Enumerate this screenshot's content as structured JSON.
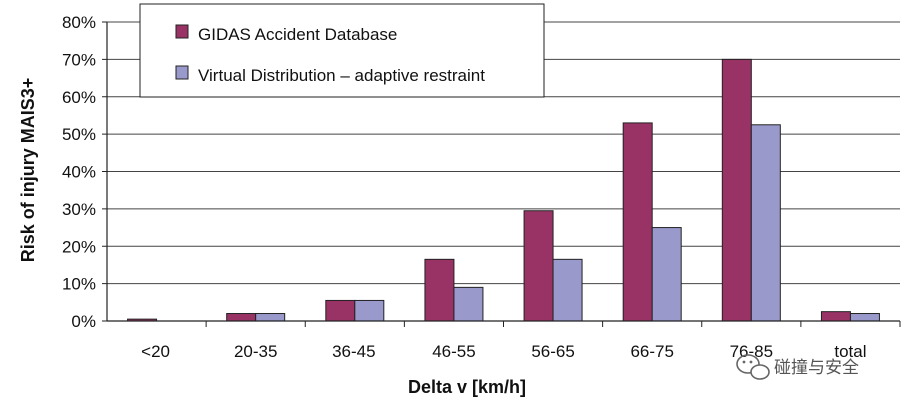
{
  "chart_data": {
    "type": "bar",
    "categories": [
      "<20",
      "20-35",
      "36-45",
      "46-55",
      "56-65",
      "66-75",
      "76-85",
      "total"
    ],
    "series": [
      {
        "name": "GIDAS Accident Database",
        "color": "#993366",
        "values": [
          0.5,
          2,
          5.5,
          16.5,
          29.5,
          53,
          70,
          2.5
        ]
      },
      {
        "name": "Virtual Distribution – adaptive restraint",
        "color": "#9999cc",
        "values": [
          0,
          2,
          5.5,
          9,
          16.5,
          25,
          52.5,
          2
        ]
      }
    ],
    "xlabel": "Delta v [km/h]",
    "ylabel": "Risk of injury MAIS3+",
    "ylim": [
      0,
      80
    ],
    "yticks": [
      "0%",
      "10%",
      "20%",
      "30%",
      "40%",
      "50%",
      "60%",
      "70%",
      "80%"
    ],
    "grid": true,
    "legend_position": "top-left"
  },
  "watermark": {
    "text": "碰撞与安全",
    "icon": "wechat-icon"
  }
}
